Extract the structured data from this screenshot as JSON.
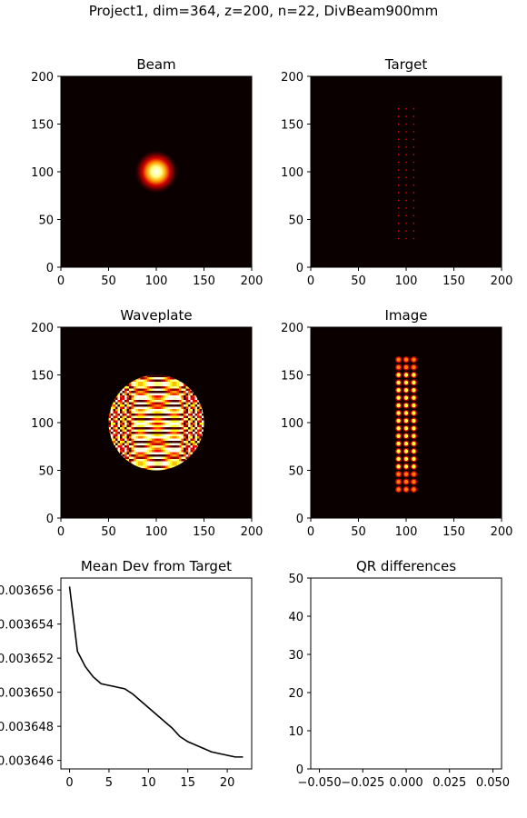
{
  "figure": {
    "suptitle": "Project1, dim=364, z=200, n=22, DivBeam900mm"
  },
  "chart_data": [
    {
      "id": "beam",
      "type": "heatmap",
      "title": "Beam",
      "xlim": [
        0,
        200
      ],
      "ylim": [
        0,
        200
      ],
      "xticks": [
        "0",
        "50",
        "100",
        "150",
        "200"
      ],
      "yticks": [
        "0",
        "50",
        "100",
        "150",
        "200"
      ],
      "colormap": "hot",
      "content": {
        "kind": "gaussian-spot",
        "center": [
          100,
          100
        ],
        "sigma": 10
      }
    },
    {
      "id": "target",
      "type": "heatmap",
      "title": "Target",
      "xlim": [
        0,
        200
      ],
      "ylim": [
        0,
        200
      ],
      "xticks": [
        "0",
        "50",
        "100",
        "150",
        "200"
      ],
      "yticks": [
        "0",
        "50",
        "100",
        "150",
        "200"
      ],
      "colormap": "hot",
      "content": {
        "kind": "spot-grid",
        "x": [
          92,
          100,
          108
        ],
        "y_from": 30,
        "y_to": 170,
        "y_step": 8,
        "intensity": 0.35
      }
    },
    {
      "id": "waveplate",
      "type": "heatmap",
      "title": "Waveplate",
      "xlim": [
        0,
        200
      ],
      "ylim": [
        0,
        200
      ],
      "xticks": [
        "0",
        "50",
        "100",
        "150",
        "200"
      ],
      "yticks": [
        "0",
        "50",
        "100",
        "150",
        "200"
      ],
      "colormap": "hot",
      "content": {
        "kind": "phase-disk",
        "center": [
          100,
          100
        ],
        "radius": 50
      }
    },
    {
      "id": "image",
      "type": "heatmap",
      "title": "Image",
      "xlim": [
        0,
        200
      ],
      "ylim": [
        0,
        200
      ],
      "xticks": [
        "0",
        "50",
        "100",
        "150",
        "200"
      ],
      "yticks": [
        "0",
        "50",
        "100",
        "150",
        "200"
      ],
      "colormap": "hot",
      "content": {
        "kind": "spot-grid",
        "x": [
          92,
          100,
          108
        ],
        "y_from": 30,
        "y_to": 170,
        "y_step": 8,
        "intensity": 1.0
      }
    },
    {
      "id": "meandev",
      "type": "line",
      "title": "Mean Dev from Target",
      "xlim": [
        -1.1,
        23.1
      ],
      "ylim": [
        0.0036455,
        0.0036567
      ],
      "xticks": [
        {
          "value": 0,
          "label": "0"
        },
        {
          "value": 5,
          "label": "5"
        },
        {
          "value": 10,
          "label": "10"
        },
        {
          "value": 15,
          "label": "15"
        },
        {
          "value": 20,
          "label": "20"
        }
      ],
      "yticks": [
        {
          "value": 0.003656,
          "label": "0.003656"
        },
        {
          "value": 0.003654,
          "label": "0.003654"
        },
        {
          "value": 0.003652,
          "label": "0.003652"
        },
        {
          "value": 0.00365,
          "label": "0.003650"
        },
        {
          "value": 0.003648,
          "label": "0.003648"
        },
        {
          "value": 0.003646,
          "label": "0.003646"
        }
      ],
      "line_color": "#000000",
      "x": [
        0,
        1,
        2,
        3,
        4,
        5,
        6,
        7,
        8,
        9,
        10,
        11,
        12,
        13,
        14,
        15,
        16,
        17,
        18,
        19,
        20,
        21,
        22
      ],
      "y": [
        0.0036562,
        0.0036524,
        0.0036515,
        0.0036509,
        0.0036505,
        0.0036504,
        0.0036503,
        0.0036502,
        0.0036499,
        0.0036495,
        0.0036491,
        0.0036487,
        0.0036483,
        0.0036479,
        0.0036474,
        0.0036471,
        0.0036469,
        0.0036467,
        0.0036465,
        0.0036464,
        0.0036463,
        0.0036462,
        0.0036462
      ]
    },
    {
      "id": "qr",
      "type": "line",
      "title": "QR differences",
      "xlim": [
        -0.055,
        0.055
      ],
      "ylim": [
        0,
        50
      ],
      "xticks": [
        {
          "value": -0.05,
          "label": "−0.050"
        },
        {
          "value": -0.025,
          "label": "−0.025"
        },
        {
          "value": 0.0,
          "label": "0.000"
        },
        {
          "value": 0.025,
          "label": "0.025"
        },
        {
          "value": 0.05,
          "label": "0.050"
        }
      ],
      "yticks": [
        {
          "value": 0,
          "label": "0"
        },
        {
          "value": 10,
          "label": "10"
        },
        {
          "value": 20,
          "label": "20"
        },
        {
          "value": 30,
          "label": "30"
        },
        {
          "value": 40,
          "label": "40"
        },
        {
          "value": 50,
          "label": "50"
        }
      ],
      "x": [],
      "y": []
    }
  ]
}
